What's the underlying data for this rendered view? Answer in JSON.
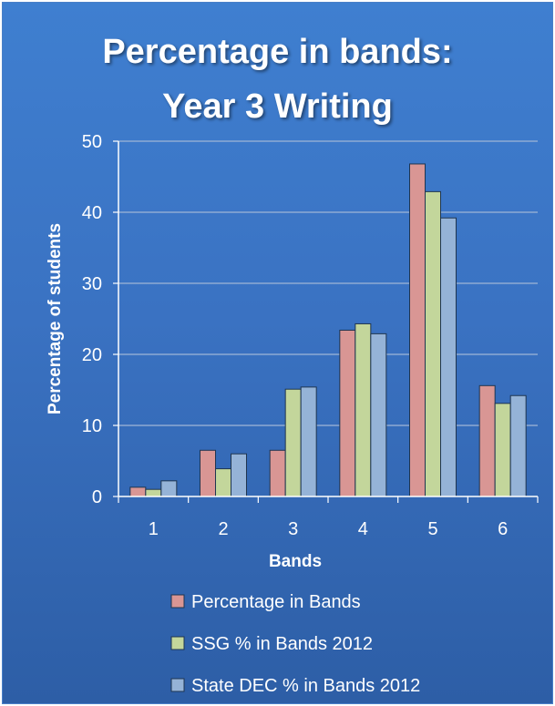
{
  "chart_data": {
    "type": "bar",
    "title_lines": [
      "Percentage in bands:",
      "Year 3 Writing"
    ],
    "xlabel": "Bands",
    "ylabel": "Percentage of students",
    "categories": [
      "1",
      "2",
      "3",
      "4",
      "5",
      "6"
    ],
    "ylim": [
      0,
      50
    ],
    "yticks": [
      "0",
      "10",
      "20",
      "30",
      "40",
      "50"
    ],
    "grid": true,
    "legend_position": "bottom",
    "series": [
      {
        "name": "Percentage in Bands",
        "color": "#d99694",
        "values": [
          1.3,
          6.5,
          6.5,
          23.4,
          46.8,
          15.6
        ]
      },
      {
        "name": "SSG % in Bands 2012",
        "color": "#c3d69b",
        "values": [
          1.0,
          3.9,
          15.1,
          24.3,
          42.9,
          13.1
        ]
      },
      {
        "name": "State DEC % in Bands 2012",
        "color": "#95b3d7",
        "values": [
          2.2,
          6.0,
          15.4,
          22.9,
          39.2,
          14.2
        ]
      }
    ]
  }
}
